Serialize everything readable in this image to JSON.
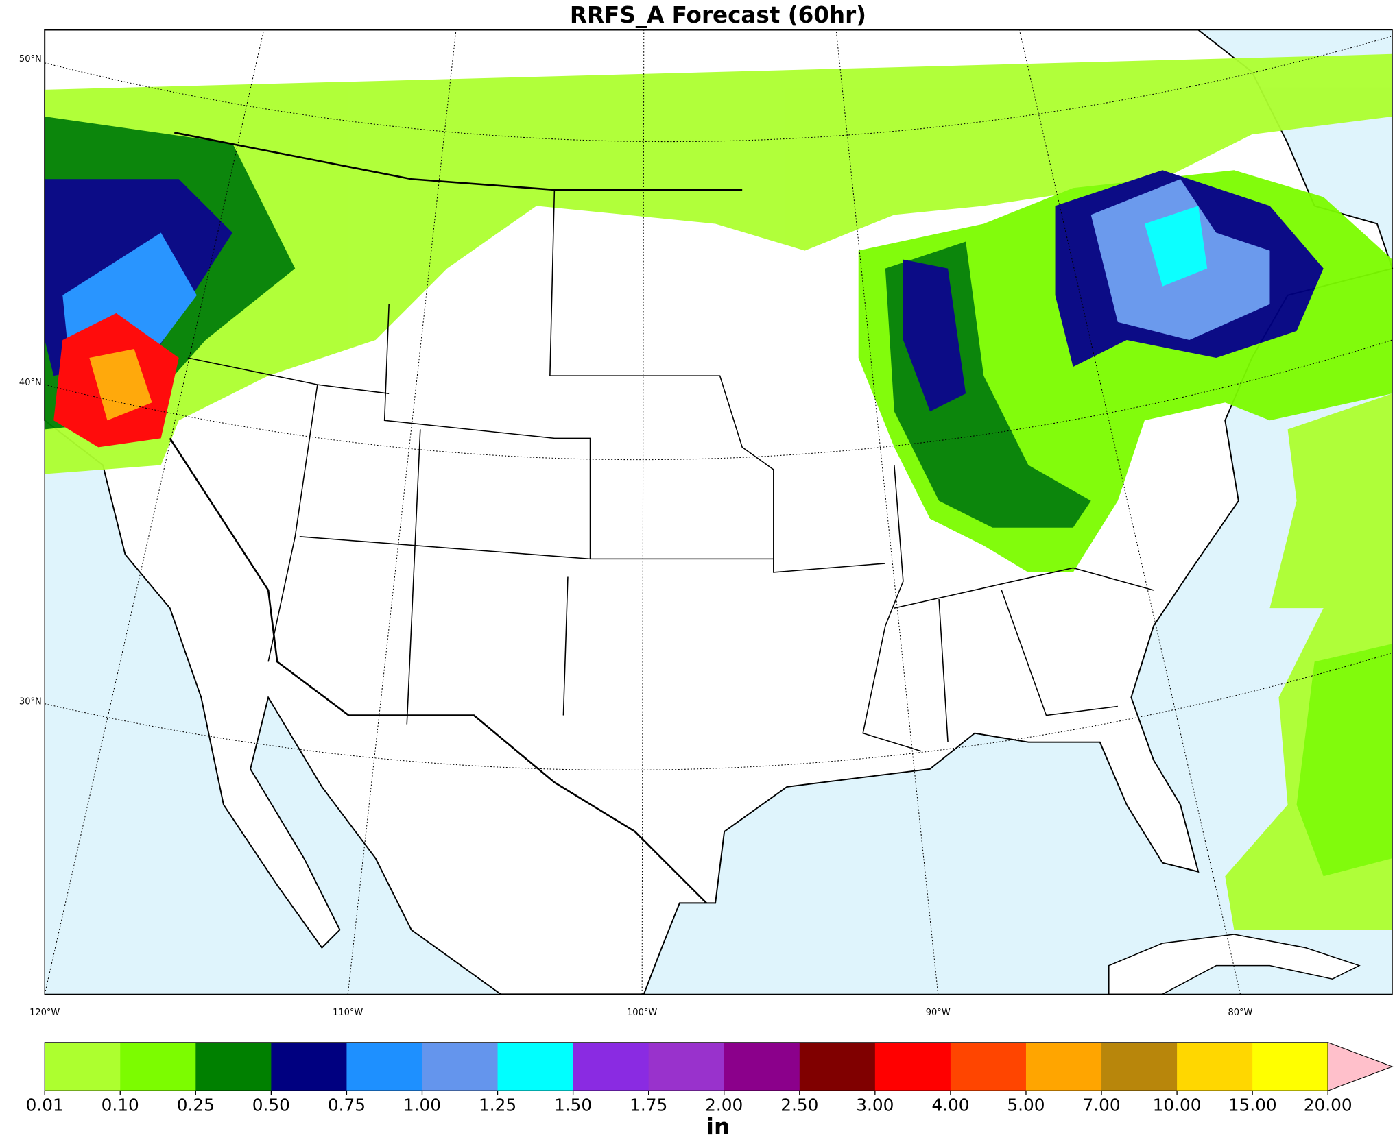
{
  "title": "RRFS_A Forecast (60hr)",
  "map": {
    "lat_labels": [
      "50°N",
      "40°N",
      "30°N"
    ],
    "lon_labels": [
      "120°W",
      "110°W",
      "100°W",
      "90°W",
      "80°W"
    ]
  },
  "colorbar": {
    "label": "in",
    "ticks": [
      {
        "value": 0.01,
        "label": "0.01"
      },
      {
        "value": 0.1,
        "label": "0.10"
      },
      {
        "value": 0.25,
        "label": "0.25"
      },
      {
        "value": 0.5,
        "label": "0.50"
      },
      {
        "value": 0.75,
        "label": "0.75"
      },
      {
        "value": 1,
        "label": "1.00"
      },
      {
        "value": 1.25,
        "label": "1.25"
      },
      {
        "value": 1.5,
        "label": "1.50"
      },
      {
        "value": 1.75,
        "label": "1.75"
      },
      {
        "value": 2,
        "label": "2.00"
      },
      {
        "value": 2.5,
        "label": "2.50"
      },
      {
        "value": 3,
        "label": "3.00"
      },
      {
        "value": 4,
        "label": "4.00"
      },
      {
        "value": 5,
        "label": "5.00"
      },
      {
        "value": 7,
        "label": "7.00"
      },
      {
        "value": 10,
        "label": "10.00"
      },
      {
        "value": 15,
        "label": "15.00"
      },
      {
        "value": 20,
        "label": "20.00"
      }
    ],
    "colors": [
      "#adff2f",
      "#7cfc00",
      "#008000",
      "#000080",
      "#1e90ff",
      "#6495ed",
      "#00ffff",
      "#8a2be2",
      "#9932cc",
      "#8b008b",
      "#800000",
      "#ff0000",
      "#ff4500",
      "#ffa500",
      "#b8860b",
      "#ffd700",
      "#ffff00"
    ],
    "extend_color": "#ffc0cb"
  }
}
